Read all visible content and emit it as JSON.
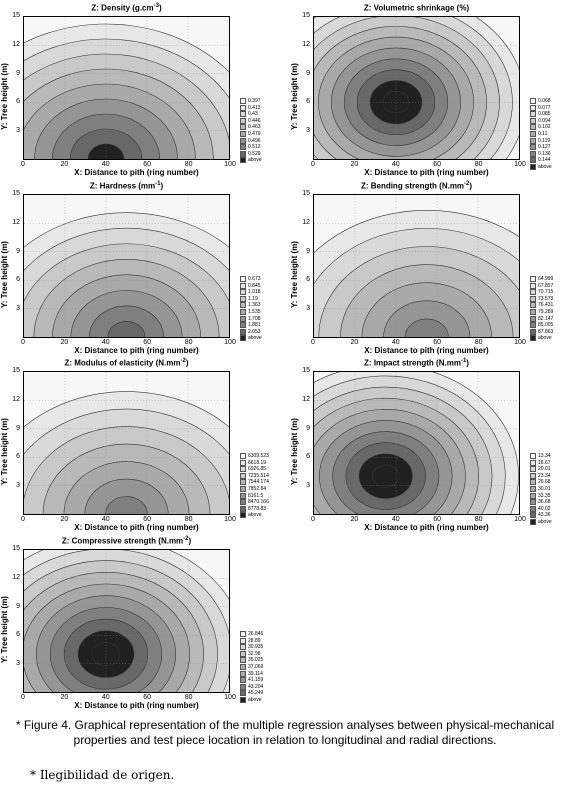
{
  "gray_levels": [
    "#f7f7f7",
    "#e8e8e8",
    "#d9d9d9",
    "#c9c9c9",
    "#b9b9b9",
    "#a9a9a9",
    "#959595",
    "#7f7f7f",
    "#686868",
    "#202020"
  ],
  "chart_data": [
    {
      "type": "heatmap",
      "title_prefix": "Z: Density (g.cm",
      "title_exp": "-3",
      "title_suffix": ")",
      "xlabel": "X: Distance to pith (ring number)",
      "ylabel": "Y: Tree height (m)",
      "xlim": [
        0,
        100
      ],
      "ylim": [
        0,
        15
      ],
      "x_ticks": [
        "0",
        "20",
        "40",
        "60",
        "80",
        "100"
      ],
      "y_ticks": [
        "15",
        "12",
        "9",
        "6",
        "3"
      ],
      "legend": [
        "0.397",
        "0.413",
        "0.43",
        "0.446",
        "0.463",
        "0.479",
        "0.496",
        "0.512",
        "0.529",
        "above"
      ],
      "peak": {
        "x": 40,
        "y": 0,
        "level": 9
      },
      "low": {
        "x": 100,
        "y": 15
      }
    },
    {
      "type": "heatmap",
      "title_prefix": "Z: Volumetric shrinkage (%)",
      "title_exp": "",
      "title_suffix": "",
      "xlabel": "X: Distance to pith (ring number)",
      "ylabel": "Y: Tree height (m)",
      "xlim": [
        0,
        100
      ],
      "ylim": [
        0,
        15
      ],
      "x_ticks": [
        "0",
        "20",
        "40",
        "60",
        "80",
        "100"
      ],
      "y_ticks": [
        "15",
        "12",
        "9",
        "6",
        "3"
      ],
      "legend": [
        "0.068",
        "0.077",
        "0.085",
        "0.094",
        "0.102",
        "0.11",
        "0.119",
        "0.127",
        "0.136",
        "0.144",
        "above"
      ],
      "peak": {
        "x": 40,
        "y": 6,
        "level": 10
      },
      "low": {
        "x": 100,
        "y": 15
      }
    },
    {
      "type": "heatmap",
      "title_prefix": "Z: Hardness (mm",
      "title_exp": "-1",
      "title_suffix": ")",
      "xlabel": "X: Distance to pith (ring number)",
      "ylabel": "Y: Tree height (m)",
      "xlim": [
        0,
        100
      ],
      "ylim": [
        0,
        15
      ],
      "x_ticks": [
        "0",
        "20",
        "40",
        "60",
        "80",
        "100"
      ],
      "y_ticks": [
        "15",
        "12",
        "9",
        "6",
        "3"
      ],
      "legend": [
        "0.673",
        "0.845",
        "1.018",
        "1.19",
        "1.363",
        "1.535",
        "1.708",
        "1.881",
        "2.053",
        "above"
      ],
      "peak": {
        "x": 50,
        "y": 0,
        "level": 8
      },
      "low": {
        "x": 100,
        "y": 15
      }
    },
    {
      "type": "heatmap",
      "title_prefix": "Z: Bending strength (N.mm",
      "title_exp": "-2",
      "title_suffix": ")",
      "xlabel": "X: Distance to pith (ring number)",
      "ylabel": "Y: Tree height (m)",
      "xlim": [
        0,
        100
      ],
      "ylim": [
        0,
        15
      ],
      "x_ticks": [
        "0",
        "20",
        "40",
        "60",
        "80",
        "100"
      ],
      "y_ticks": [
        "15",
        "12",
        "9",
        "6",
        "3"
      ],
      "legend": [
        "64.999",
        "67.857",
        "70.715",
        "73.573",
        "76.431",
        "79.289",
        "82.147",
        "85.005",
        "87.863",
        "above"
      ],
      "peak": {
        "x": 55,
        "y": 0,
        "level": 7
      },
      "low": {
        "x": 0,
        "y": 15
      }
    },
    {
      "type": "heatmap",
      "title_prefix": "Z: Modulus of elasticity (N.mm",
      "title_exp": "-2",
      "title_suffix": ")",
      "xlabel": "X: Distance to pith (ring number)",
      "ylabel": "Y: Tree height (m)",
      "xlim": [
        0,
        100
      ],
      "ylim": [
        0,
        15
      ],
      "x_ticks": [
        "0",
        "20",
        "40",
        "60",
        "80",
        "100"
      ],
      "y_ticks": [
        "15",
        "12",
        "9",
        "6",
        "3"
      ],
      "legend": [
        "6309.523",
        "6618.19",
        "6926.85",
        "7235.514",
        "7544.174",
        "7852.84",
        "8161.5",
        "8470.166",
        "8778.83",
        "above"
      ],
      "peak": {
        "x": 50,
        "y": 0,
        "level": 7
      },
      "low": {
        "x": 100,
        "y": 15
      }
    },
    {
      "type": "heatmap",
      "title_prefix": "Z: Impact strength (N.mm",
      "title_exp": "-1",
      "title_suffix": ")",
      "xlabel": "X: Distance to pith (ring number)",
      "ylabel": "Y: Tree height (m)",
      "xlim": [
        0,
        100
      ],
      "ylim": [
        0,
        15
      ],
      "x_ticks": [
        "0",
        "20",
        "40",
        "60",
        "80",
        "100"
      ],
      "y_ticks": [
        "15",
        "12",
        "9",
        "6",
        "3"
      ],
      "legend": [
        "13.34",
        "16.67",
        "20.01",
        "23.34",
        "26.68",
        "30.01",
        "33.35",
        "36.68",
        "40.02",
        "43.36",
        "above"
      ],
      "peak": {
        "x": 35,
        "y": 4,
        "level": 10
      },
      "low": {
        "x": 90,
        "y": 15
      }
    },
    {
      "type": "heatmap",
      "title_prefix": "Z: Compressive strength (N.mm",
      "title_exp": "-2",
      "title_suffix": ")",
      "xlabel": "X: Distance to pith (ring number)",
      "ylabel": "Y: Tree height (m)",
      "xlim": [
        0,
        100
      ],
      "ylim": [
        0,
        15
      ],
      "x_ticks": [
        "0",
        "20",
        "40",
        "60",
        "80",
        "100"
      ],
      "y_ticks": [
        "15",
        "12",
        "9",
        "6",
        "3"
      ],
      "legend": [
        "26.846",
        "28.89",
        "30.935",
        "32.98",
        "35.025",
        "37.069",
        "39.114",
        "41.159",
        "43.204",
        "45.249",
        "above"
      ],
      "peak": {
        "x": 40,
        "y": 4,
        "level": 10
      },
      "low": {
        "x": 100,
        "y": 15
      }
    }
  ],
  "caption": "* Figure 4. Graphical representation of the multiple regression analyses between physical-mechanical properties and test piece location in relation to longitudinal and radial directions.",
  "note": "* Ilegibilidad de origen."
}
